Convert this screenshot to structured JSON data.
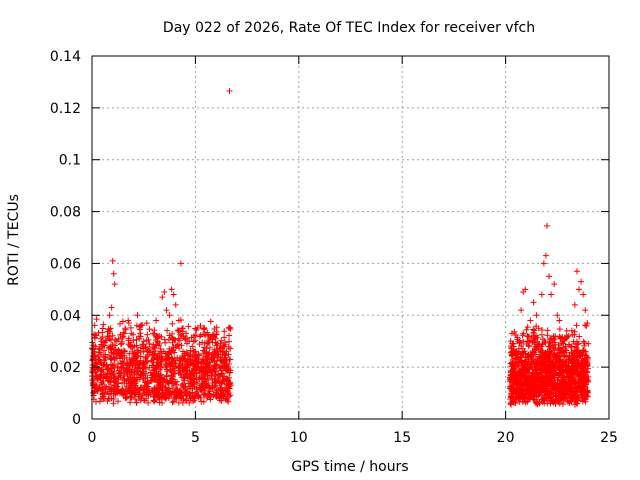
{
  "chart_data": {
    "type": "scatter",
    "title": "Day 022 of 2026, Rate Of TEC Index for receiver vfch",
    "xlabel": "GPS time / hours",
    "ylabel": "ROTI / TECUs",
    "xlim": [
      0,
      25
    ],
    "ylim": [
      0,
      0.14
    ],
    "xticks": [
      0,
      5,
      10,
      15,
      20,
      25
    ],
    "xtick_labels": [
      "0",
      "5",
      "10",
      "15",
      "20",
      "25"
    ],
    "yticks": [
      0,
      0.02,
      0.04,
      0.06,
      0.08,
      0.1,
      0.12,
      0.14
    ],
    "ytick_labels": [
      "0",
      "0.02",
      "0.04",
      "0.06",
      "0.08",
      "0.1",
      "0.12",
      "0.14"
    ],
    "grid": true,
    "marker": "+",
    "color": "#ff0000",
    "series": [
      {
        "name": "ROTI",
        "points": [
          [
            0.0,
            0.015
          ],
          [
            0.15,
            0.018
          ],
          [
            0.3,
            0.024
          ],
          [
            0.45,
            0.014
          ],
          [
            0.6,
            0.021
          ],
          [
            0.75,
            0.032
          ],
          [
            0.85,
            0.04
          ],
          [
            0.95,
            0.043
          ],
          [
            1.0,
            0.061
          ],
          [
            1.05,
            0.056
          ],
          [
            1.1,
            0.052
          ],
          [
            1.2,
            0.03
          ],
          [
            1.3,
            0.025
          ],
          [
            1.45,
            0.02
          ],
          [
            1.6,
            0.035
          ],
          [
            1.75,
            0.038
          ],
          [
            1.9,
            0.033
          ],
          [
            2.05,
            0.028
          ],
          [
            2.2,
            0.04
          ],
          [
            2.35,
            0.036
          ],
          [
            2.5,
            0.03
          ],
          [
            2.65,
            0.037
          ],
          [
            2.8,
            0.027
          ],
          [
            2.95,
            0.033
          ],
          [
            3.1,
            0.038
          ],
          [
            3.25,
            0.032
          ],
          [
            3.4,
            0.047
          ],
          [
            3.5,
            0.049
          ],
          [
            3.6,
            0.042
          ],
          [
            3.75,
            0.04
          ],
          [
            3.85,
            0.05
          ],
          [
            3.95,
            0.048
          ],
          [
            4.05,
            0.044
          ],
          [
            4.2,
            0.038
          ],
          [
            4.3,
            0.06
          ],
          [
            4.4,
            0.035
          ],
          [
            4.55,
            0.033
          ],
          [
            4.7,
            0.03
          ],
          [
            4.85,
            0.028
          ],
          [
            5.0,
            0.026
          ],
          [
            5.15,
            0.025
          ],
          [
            5.3,
            0.022
          ],
          [
            5.5,
            0.024
          ],
          [
            5.7,
            0.02
          ],
          [
            5.9,
            0.032
          ],
          [
            6.05,
            0.029
          ],
          [
            6.2,
            0.026
          ],
          [
            6.35,
            0.022
          ],
          [
            6.5,
            0.019
          ],
          [
            6.65,
            0.1265
          ],
          [
            20.3,
            0.025
          ],
          [
            20.45,
            0.022
          ],
          [
            20.6,
            0.03
          ],
          [
            20.75,
            0.042
          ],
          [
            20.85,
            0.049
          ],
          [
            20.95,
            0.05
          ],
          [
            21.05,
            0.032
          ],
          [
            21.2,
            0.038
          ],
          [
            21.35,
            0.045
          ],
          [
            21.5,
            0.04
          ],
          [
            21.6,
            0.035
          ],
          [
            21.75,
            0.048
          ],
          [
            21.85,
            0.06
          ],
          [
            21.95,
            0.063
          ],
          [
            22.0,
            0.0745
          ],
          [
            22.1,
            0.055
          ],
          [
            22.2,
            0.048
          ],
          [
            22.35,
            0.052
          ],
          [
            22.5,
            0.04
          ],
          [
            22.6,
            0.038
          ],
          [
            22.75,
            0.03
          ],
          [
            22.9,
            0.027
          ],
          [
            23.05,
            0.032
          ],
          [
            23.2,
            0.028
          ],
          [
            23.35,
            0.044
          ],
          [
            23.45,
            0.057
          ],
          [
            23.55,
            0.05
          ],
          [
            23.65,
            0.053
          ],
          [
            23.75,
            0.048
          ],
          [
            23.85,
            0.042
          ],
          [
            23.95,
            0.037
          ],
          [
            24.0,
            0.029
          ]
        ],
        "dense_clusters": [
          {
            "x_range": [
              0.0,
              6.7
            ],
            "y_floor": 0.004,
            "y_typical": [
              0.008,
              0.03
            ],
            "density": "dense"
          },
          {
            "x_range": [
              20.2,
              24.0
            ],
            "y_floor": 0.003,
            "y_typical": [
              0.007,
              0.028
            ],
            "density": "dense"
          }
        ]
      }
    ]
  }
}
